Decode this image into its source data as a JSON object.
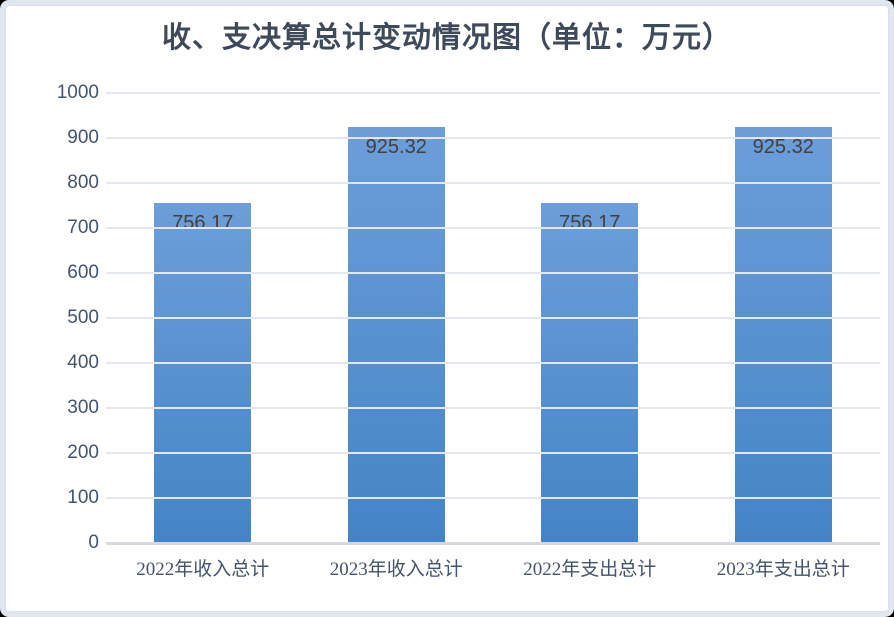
{
  "title": "收、支决算总计变动情况图（单位：万元）",
  "unit_label": "万元",
  "colors": {
    "bar_gradient_top": "#6C9ED9",
    "bar_gradient_bottom": "#4484C6",
    "gridline": "#E3E7EE",
    "axis_line": "#D6D9DE",
    "tick_text": "#44546A",
    "title_text": "#3E4959",
    "data_label_text": "#404040",
    "frame_border": "#E1E7F0",
    "background": "#FFFFFF"
  },
  "chart_data": {
    "type": "bar",
    "title": "收、支决算总计变动情况图（单位：万元）",
    "categories": [
      "2022年收入总计",
      "2023年收入总计",
      "2022年支出总计",
      "2023年支出总计"
    ],
    "values": [
      756.17,
      925.32,
      756.17,
      925.32
    ],
    "value_labels": [
      "756.17",
      "925.32",
      "756.17",
      "925.32"
    ],
    "xlabel": "",
    "ylabel": "",
    "ylim": [
      0,
      1000
    ],
    "yticks": [
      0,
      100,
      200,
      300,
      400,
      500,
      600,
      700,
      800,
      900,
      1000
    ],
    "grid": true,
    "legend_position": "none",
    "data_label_position": "inside-top"
  }
}
